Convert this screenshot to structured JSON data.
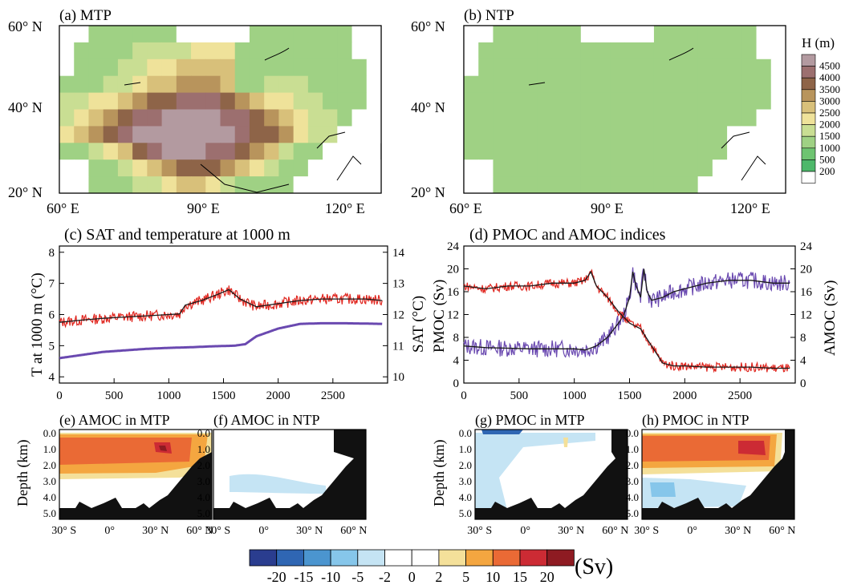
{
  "colors": {
    "land_low": "#4db86a",
    "purple": "#6a49b0",
    "red": "#e0261f",
    "black_line": "#1a1a1a",
    "bathymetry": "#111111"
  },
  "maps": {
    "lat_ticks": [
      "60° N",
      "40° N",
      "20° N"
    ],
    "lon_ticks": [
      "60° E",
      "90° E",
      "120° E"
    ],
    "panel_a": {
      "title": "(a) MTP"
    },
    "panel_b": {
      "title": "(b) NTP"
    },
    "legend": {
      "title": "H (m)",
      "levels": [
        "4500",
        "4000",
        "3500",
        "3000",
        "2500",
        "2000",
        "1500",
        "1000",
        "500",
        "200"
      ],
      "colors": [
        "#b39aa0",
        "#9c6f6f",
        "#8e6448",
        "#b8945c",
        "#d8c07a",
        "#efe29a",
        "#c9de93",
        "#9fd184",
        "#6ec471",
        "#4db86a",
        "#ffffff"
      ]
    }
  },
  "chart_data": [
    {
      "type": "line",
      "title": "(c) SAT and temperature at 1000 m",
      "ylabel": "T at 1000 m (°C)",
      "y2label": "SAT (°C)",
      "x_ticks": [
        "0",
        "500",
        "1000",
        "1500",
        "2000",
        "2500"
      ],
      "xlim": [
        0,
        3000
      ],
      "ylim": [
        3.8,
        8.2
      ],
      "y_ticks": [
        "4",
        "5",
        "6",
        "7",
        "8"
      ],
      "y2lim": [
        9.8,
        14.2
      ],
      "y2_ticks": [
        "10",
        "11",
        "12",
        "13",
        "14"
      ],
      "series": [
        {
          "axis": "right",
          "x": [
            0,
            200,
            400,
            600,
            800,
            1000,
            1100,
            1150,
            1300,
            1450,
            1550,
            1650,
            1800,
            2000,
            2200,
            2400,
            2600,
            2800,
            2950
          ],
          "y": [
            11.75,
            11.82,
            11.88,
            11.92,
            11.96,
            12.0,
            12.02,
            12.3,
            12.45,
            12.65,
            12.8,
            12.5,
            12.25,
            12.35,
            12.45,
            12.5,
            12.5,
            12.5,
            12.45
          ]
        },
        {
          "axis": "left",
          "x": [
            0,
            200,
            400,
            600,
            800,
            1000,
            1200,
            1400,
            1600,
            1700,
            1800,
            2000,
            2200,
            2400,
            2600,
            2800,
            2950
          ],
          "y": [
            4.6,
            4.7,
            4.8,
            4.85,
            4.9,
            4.93,
            4.95,
            4.98,
            5.0,
            5.05,
            5.3,
            5.55,
            5.7,
            5.72,
            5.72,
            5.71,
            5.7
          ]
        }
      ]
    },
    {
      "type": "line",
      "title": "(d) PMOC and AMOC indices",
      "ylabel": "PMOC (Sv)",
      "y2label": "AMOC (Sv)",
      "x_ticks": [
        "0",
        "500",
        "1000",
        "1500",
        "2000",
        "2500"
      ],
      "xlim": [
        0,
        3000
      ],
      "ylim": [
        0,
        24
      ],
      "y_ticks": [
        "0",
        "4",
        "8",
        "12",
        "16",
        "20",
        "24"
      ],
      "y2_ticks": [
        "0",
        "4",
        "8",
        "12",
        "16",
        "20",
        "24"
      ],
      "series": [
        {
          "axis": "left",
          "x": [
            0,
            200,
            400,
            600,
            800,
            1000,
            1100,
            1200,
            1300,
            1400,
            1450,
            1500,
            1530,
            1560,
            1600,
            1630,
            1660,
            1700,
            1800,
            1900,
            2000,
            2200,
            2400,
            2600,
            2800,
            2950
          ],
          "y": [
            6.5,
            6.2,
            6.1,
            6.0,
            6.0,
            6.0,
            5.8,
            6.5,
            8.0,
            10.5,
            12.0,
            15.0,
            19.5,
            17.0,
            15.0,
            20.0,
            16.0,
            14.5,
            15.0,
            16.0,
            16.5,
            17.5,
            18.0,
            18.0,
            17.5,
            17.5
          ]
        },
        {
          "axis": "right",
          "x": [
            0,
            200,
            400,
            600,
            800,
            1000,
            1100,
            1150,
            1200,
            1300,
            1400,
            1500,
            1550,
            1600,
            1650,
            1700,
            1800,
            1900,
            2000,
            2200,
            2400,
            2600,
            2800,
            2950
          ],
          "y": [
            17.0,
            16.5,
            17.0,
            17.0,
            17.5,
            17.5,
            18.0,
            19.5,
            17.0,
            15.0,
            12.5,
            10.5,
            10.0,
            9.5,
            8.0,
            6.5,
            3.5,
            3.0,
            3.0,
            2.8,
            2.8,
            2.8,
            2.6,
            2.6
          ]
        }
      ]
    },
    {
      "type": "heatmap",
      "panels": [
        {
          "title": "(e) AMOC in MTP"
        },
        {
          "title": "(f) AMOC in NTP"
        },
        {
          "title": "(g) PMOC in MTP"
        },
        {
          "title": "(h) PMOC in NTP"
        }
      ],
      "ylabel": "Depth (km)",
      "y_ticks": [
        "0.0",
        "1.0",
        "2.0",
        "3.0",
        "4.0",
        "5.0"
      ],
      "x_ticks": [
        "30° S",
        "0°",
        "30° N",
        "60° N"
      ],
      "colorbar": {
        "unit": "(Sv)",
        "ticks": [
          "-20",
          "-15",
          "-10",
          "-5",
          "-2",
          "0",
          "2",
          "5",
          "10",
          "15",
          "20"
        ],
        "colors": [
          "#2a3d8f",
          "#2f66b3",
          "#4b95cf",
          "#86c6ea",
          "#c5e4f4",
          "#ffffff",
          "#ffffff",
          "#f4e09a",
          "#f4a640",
          "#ea6a35",
          "#cc2b34",
          "#8e1b22"
        ]
      }
    }
  ]
}
